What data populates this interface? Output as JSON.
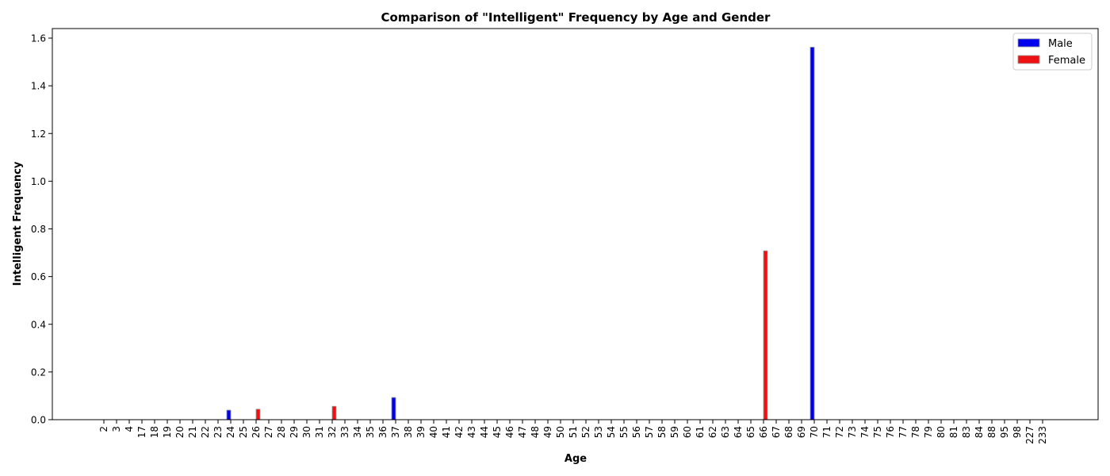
{
  "chart_data": {
    "type": "bar",
    "title": "Comparison of \"Intelligent\" Frequency by Age and Gender",
    "xlabel": "Age",
    "ylabel": "Intelligent Frequency",
    "ylim": [
      0,
      1.64
    ],
    "yticks": [
      "0.0",
      "0.2",
      "0.4",
      "0.6",
      "0.8",
      "1.0",
      "1.2",
      "1.4",
      "1.6"
    ],
    "legend_position": "top-right",
    "grid": false,
    "categories": [
      "2",
      "3",
      "4",
      "17",
      "18",
      "19",
      "20",
      "21",
      "22",
      "23",
      "24",
      "25",
      "26",
      "27",
      "28",
      "29",
      "30",
      "31",
      "32",
      "33",
      "34",
      "35",
      "36",
      "37",
      "38",
      "39",
      "40",
      "41",
      "42",
      "43",
      "44",
      "45",
      "46",
      "47",
      "48",
      "49",
      "50",
      "51",
      "52",
      "53",
      "54",
      "55",
      "56",
      "57",
      "58",
      "59",
      "60",
      "61",
      "62",
      "63",
      "64",
      "65",
      "66",
      "67",
      "68",
      "69",
      "70",
      "71",
      "72",
      "73",
      "74",
      "75",
      "76",
      "77",
      "78",
      "79",
      "80",
      "81",
      "83",
      "84",
      "88",
      "95",
      "98",
      "227",
      "233"
    ],
    "series": [
      {
        "name": "Male",
        "color": "#0000ee",
        "values": [
          0,
          0,
          0,
          0,
          0,
          0,
          0,
          0,
          0,
          0,
          0.04,
          0,
          0,
          0,
          0,
          0,
          0,
          0,
          0,
          0,
          0,
          0,
          0,
          0.093,
          0,
          0,
          0,
          0,
          0,
          0,
          0,
          0,
          0,
          0,
          0,
          0,
          0,
          0,
          0,
          0,
          0,
          0,
          0,
          0,
          0,
          0,
          0,
          0,
          0,
          0,
          0,
          0,
          0,
          0,
          0,
          0,
          1.562,
          0,
          0,
          0,
          0,
          0,
          0,
          0,
          0,
          0,
          0,
          0,
          0,
          0,
          0,
          0,
          0,
          0,
          0
        ]
      },
      {
        "name": "Female",
        "color": "#ee1111",
        "values": [
          0,
          0,
          0,
          0,
          0,
          0,
          0,
          0,
          0,
          0,
          0,
          0,
          0.044,
          0,
          0,
          0,
          0,
          0,
          0.056,
          0,
          0,
          0,
          0,
          0,
          0,
          0,
          0,
          0,
          0,
          0,
          0,
          0,
          0,
          0,
          0,
          0,
          0,
          0,
          0,
          0,
          0,
          0,
          0,
          0,
          0,
          0,
          0,
          0,
          0,
          0,
          0,
          0,
          0.708,
          0,
          0,
          0,
          0,
          0,
          0,
          0,
          0,
          0,
          0,
          0,
          0,
          0,
          0,
          0,
          0,
          0,
          0,
          0,
          0,
          0,
          0
        ]
      }
    ]
  }
}
